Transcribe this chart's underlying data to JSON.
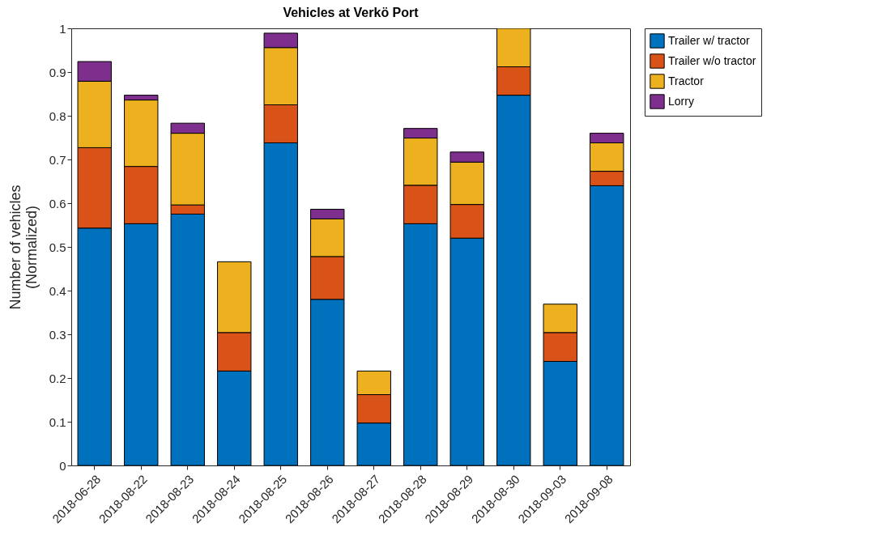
{
  "chart_data": {
    "type": "bar",
    "title": "Vehicles at Verkö Port",
    "ylabel": "Number of vehicles\n(Normalized)",
    "stacked": true,
    "legend": "top right",
    "grid": false,
    "categories": [
      "2018-06-28",
      "2018-08-22",
      "2018-08-23",
      "2018-08-24",
      "2018-08-25",
      "2018-08-26",
      "2018-08-27",
      "2018-08-28",
      "2018-08-29",
      "2018-08-30",
      "2018-09-03",
      "2018-09-08"
    ],
    "ylim": [
      0,
      1
    ],
    "yticks": [
      0,
      0.1,
      0.2,
      0.3,
      0.4,
      0.5,
      0.6,
      0.7,
      0.8,
      0.9,
      1
    ],
    "series": [
      {
        "name": "Trailer w/ tractor",
        "color": "#0072bd",
        "values": [
          0.543,
          0.553,
          0.575,
          0.216,
          0.738,
          0.38,
          0.097,
          0.553,
          0.52,
          0.847,
          0.238,
          0.64
        ]
      },
      {
        "name": "Trailer w/o tractor",
        "color": "#d95319",
        "values": [
          0.184,
          0.131,
          0.021,
          0.088,
          0.087,
          0.098,
          0.065,
          0.088,
          0.077,
          0.065,
          0.066,
          0.033
        ]
      },
      {
        "name": "Tractor",
        "color": "#edb120",
        "values": [
          0.152,
          0.152,
          0.164,
          0.162,
          0.131,
          0.086,
          0.054,
          0.108,
          0.097,
          0.088,
          0.065,
          0.065
        ]
      },
      {
        "name": "Lorry",
        "color": "#7e2f8e",
        "values": [
          0.045,
          0.011,
          0.023,
          0,
          0.033,
          0.022,
          0,
          0.022,
          0.023,
          null,
          0,
          0.022
        ]
      }
    ]
  }
}
